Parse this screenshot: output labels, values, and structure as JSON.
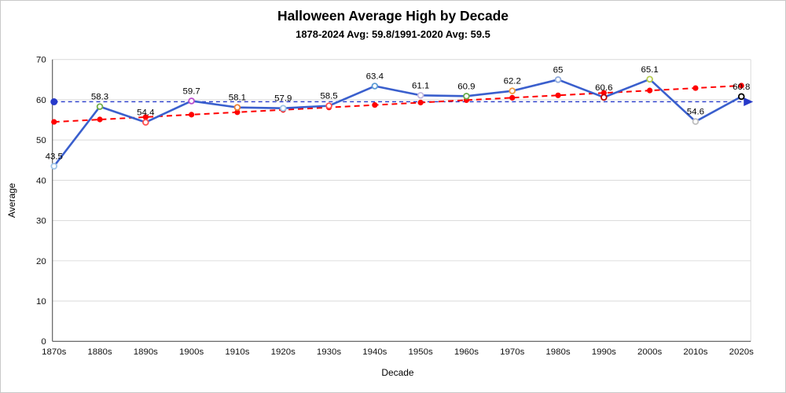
{
  "chart": {
    "title": "Halloween Average High by Decade",
    "subtitle": "1878-2024 Avg: 59.8/1991-2020 Avg: 59.5",
    "xlabel": "Decade",
    "ylabel": "Average"
  },
  "chart_data": {
    "type": "line",
    "title": "Halloween Average High by Decade",
    "subtitle": "1878-2024 Avg: 59.8/1991-2020 Avg: 59.5",
    "xlabel": "Decade",
    "ylabel": "Average",
    "categories": [
      "1870s",
      "1880s",
      "1890s",
      "1900s",
      "1910s",
      "1920s",
      "1930s",
      "1940s",
      "1950s",
      "1960s",
      "1970s",
      "1980s",
      "1990s",
      "2000s",
      "2010s",
      "2020s"
    ],
    "series": [
      {
        "name": "Halloween Average High",
        "line_color": "#3a5fcd",
        "values": [
          43.5,
          58.3,
          54.4,
          59.7,
          58.1,
          57.9,
          58.5,
          63.4,
          61.1,
          60.9,
          62.2,
          65,
          60.6,
          65.1,
          54.6,
          60.8
        ]
      }
    ],
    "marker_colors": [
      "#9dc3e6",
      "#70ad47",
      "#ff5050",
      "#b94fce",
      "#ed7d31",
      "#9dc3e6",
      "#ff5050",
      "#5b9bd5",
      "#c3b8e0",
      "#6aae4e",
      "#ed9a3f",
      "#8faadc",
      "#c00000",
      "#b5cc4e",
      "#bfbfbf",
      "#000000"
    ],
    "trendline": {
      "style": "dashed",
      "color": "#ff0000",
      "point_color": "#ff0000",
      "start": 54.5,
      "end": 63.5
    },
    "reference_line": {
      "value": 59.5,
      "color": "#2639c9",
      "style": "dashed",
      "start_marker": "dot",
      "end_marker": "arrow"
    },
    "ylim": [
      0,
      70
    ],
    "yticks": [
      0,
      10,
      20,
      30,
      40,
      50,
      60,
      70
    ],
    "grid": true,
    "legend": "none",
    "data_labels": true
  }
}
